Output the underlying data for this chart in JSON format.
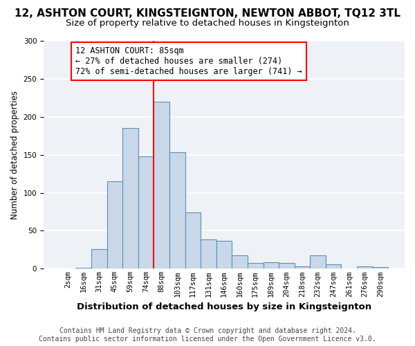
{
  "title": "12, ASHTON COURT, KINGSTEIGNTON, NEWTON ABBOT, TQ12 3TL",
  "subtitle": "Size of property relative to detached houses in Kingsteignton",
  "xlabel": "Distribution of detached houses by size in Kingsteignton",
  "ylabel": "Number of detached properties",
  "bar_labels": [
    "2sqm",
    "16sqm",
    "31sqm",
    "45sqm",
    "59sqm",
    "74sqm",
    "88sqm",
    "103sqm",
    "117sqm",
    "131sqm",
    "146sqm",
    "160sqm",
    "175sqm",
    "189sqm",
    "204sqm",
    "218sqm",
    "232sqm",
    "247sqm",
    "261sqm",
    "276sqm",
    "290sqm"
  ],
  "bar_values": [
    0,
    1,
    26,
    115,
    185,
    148,
    220,
    153,
    74,
    39,
    37,
    18,
    8,
    9,
    8,
    3,
    18,
    6,
    0,
    3,
    2
  ],
  "bar_color": "#c8d8e8",
  "bar_edge_color": "#5b8db8",
  "vline_index": 6,
  "vline_color": "red",
  "annotation_line1": "12 ASHTON COURT: 85sqm",
  "annotation_line2": "← 27% of detached houses are smaller (274)",
  "annotation_line3": "72% of semi-detached houses are larger (741) →",
  "annotation_box_color": "white",
  "annotation_box_edge_color": "red",
  "ylim": [
    0,
    300
  ],
  "yticks": [
    0,
    50,
    100,
    150,
    200,
    250,
    300
  ],
  "background_color": "#eef2f7",
  "grid_color": "white",
  "footer_line1": "Contains HM Land Registry data © Crown copyright and database right 2024.",
  "footer_line2": "Contains public sector information licensed under the Open Government Licence v3.0.",
  "title_fontsize": 11,
  "subtitle_fontsize": 9.5,
  "xlabel_fontsize": 9.5,
  "ylabel_fontsize": 8.5,
  "tick_fontsize": 7.5,
  "annotation_fontsize": 8.5,
  "footer_fontsize": 7
}
